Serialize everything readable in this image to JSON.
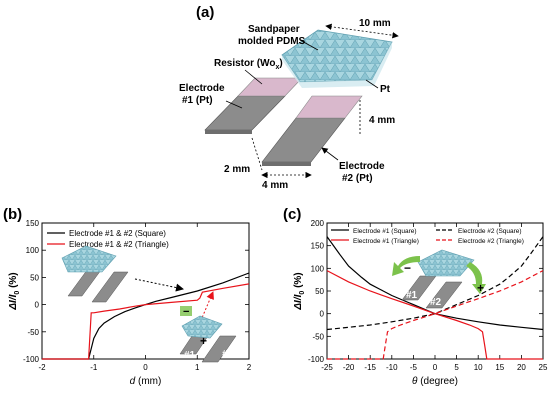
{
  "panel_a": {
    "label": "(a)",
    "pdms_label_1": "Sandpaper",
    "pdms_label_2": "molded PDMS",
    "dim_top": "10  mm",
    "resistor_label": "Resistor (Wo",
    "resistor_sub": "x",
    "resistor_close": ")",
    "pt_label": "Pt",
    "electrode1_label_1": "Electrode",
    "electrode1_label_2": "#1 (Pt)",
    "electrode2_label_1": "Electrode",
    "electrode2_label_2": "#2 (Pt)",
    "dim_right": "4 mm",
    "dim_gap": "2 mm",
    "dim_width": "4 mm",
    "colors": {
      "electrode": "#8c8c8c",
      "resistor": "#d9b8cc",
      "pdms": "#a9d6e0"
    }
  },
  "chart_data": [
    {
      "type": "line",
      "panel_label": "(b)",
      "xlabel_var": "d",
      "xlabel_unit": " (mm)",
      "ylabel_main": "ΔI/I",
      "ylabel_sub": "0",
      "ylabel_unit": " (%)",
      "xlim": [
        -2,
        2
      ],
      "ylim": [
        -100,
        150
      ],
      "xticks": [
        -2,
        -1,
        0,
        1,
        2
      ],
      "yticks": [
        -100,
        -50,
        0,
        50,
        100,
        150
      ],
      "legend_placement": "top-left",
      "inset_labels": [
        "#1",
        "#2"
      ],
      "series": [
        {
          "name": "Electrode #1 & #2 (Square)",
          "color": "#000000",
          "dash": "solid",
          "x": [
            -2,
            -1.1,
            -1.0,
            -0.9,
            -0.8,
            -0.6,
            -0.4,
            -0.2,
            0,
            0.2,
            0.5,
            1.0,
            1.5,
            2.0
          ],
          "y": [
            -100,
            -100,
            -62,
            -44,
            -34,
            -22,
            -13,
            -6,
            0,
            6,
            13,
            25,
            40,
            58
          ]
        },
        {
          "name": "Electrode #1 & #2 (Triangle)",
          "color": "#e8131b",
          "dash": "solid",
          "x": [
            -2,
            -1.1,
            -1.05,
            -1.0,
            -0.8,
            -0.5,
            -0.2,
            0,
            0.5,
            1.0,
            1.05,
            1.1,
            1.5,
            2.0
          ],
          "y": [
            -100,
            -100,
            -15,
            -15,
            -12,
            -8,
            -3,
            0,
            4,
            8,
            12,
            23,
            30,
            38
          ]
        }
      ]
    },
    {
      "type": "line",
      "panel_label": "(c)",
      "xlabel_var": "θ",
      "xlabel_unit": " (degree)",
      "ylabel_main": "ΔI/I",
      "ylabel_sub": "0",
      "ylabel_unit": " (%)",
      "xlim": [
        -25,
        25
      ],
      "ylim": [
        -100,
        200
      ],
      "xticks": [
        -25,
        -20,
        -15,
        -10,
        -5,
        0,
        5,
        10,
        15,
        20,
        25
      ],
      "yticks": [
        -100,
        -50,
        0,
        50,
        100,
        150,
        200
      ],
      "legend_placement": "top",
      "inset_labels": [
        "#1",
        "#2"
      ],
      "series": [
        {
          "name": "Electrode #1 (Square)",
          "color": "#000000",
          "dash": "solid",
          "x": [
            -25,
            -22,
            -20,
            -17,
            -15,
            -12,
            -10,
            -7,
            -5,
            -2,
            0,
            5,
            10,
            15,
            20,
            25
          ],
          "y": [
            170,
            130,
            105,
            80,
            65,
            50,
            40,
            28,
            20,
            8,
            0,
            -10,
            -18,
            -25,
            -30,
            -35
          ]
        },
        {
          "name": "Electrode #2 (Square)",
          "color": "#000000",
          "dash": "dashed",
          "x": [
            -25,
            -20,
            -15,
            -10,
            -5,
            0,
            2,
            5,
            7,
            10,
            12,
            15,
            17,
            20,
            22,
            25
          ],
          "y": [
            -35,
            -30,
            -25,
            -18,
            -10,
            0,
            8,
            20,
            28,
            40,
            50,
            65,
            80,
            105,
            130,
            170
          ]
        },
        {
          "name": "Electrode #1 (Triangle)",
          "color": "#e8131b",
          "dash": "solid",
          "x": [
            -25,
            -20,
            -15,
            -10,
            -5,
            0,
            5,
            8,
            10,
            11,
            11.5,
            12,
            25
          ],
          "y": [
            95,
            70,
            50,
            33,
            17,
            0,
            -15,
            -25,
            -33,
            -40,
            -70,
            -100,
            -100
          ]
        },
        {
          "name": "Electrode #2 (Triangle)",
          "color": "#e8131b",
          "dash": "dashed",
          "x": [
            -25,
            -12,
            -11.5,
            -11,
            -10,
            -8,
            -5,
            0,
            5,
            10,
            15,
            20,
            25
          ],
          "y": [
            -100,
            -100,
            -70,
            -40,
            -33,
            -25,
            -15,
            0,
            17,
            33,
            50,
            70,
            95
          ]
        }
      ]
    }
  ]
}
